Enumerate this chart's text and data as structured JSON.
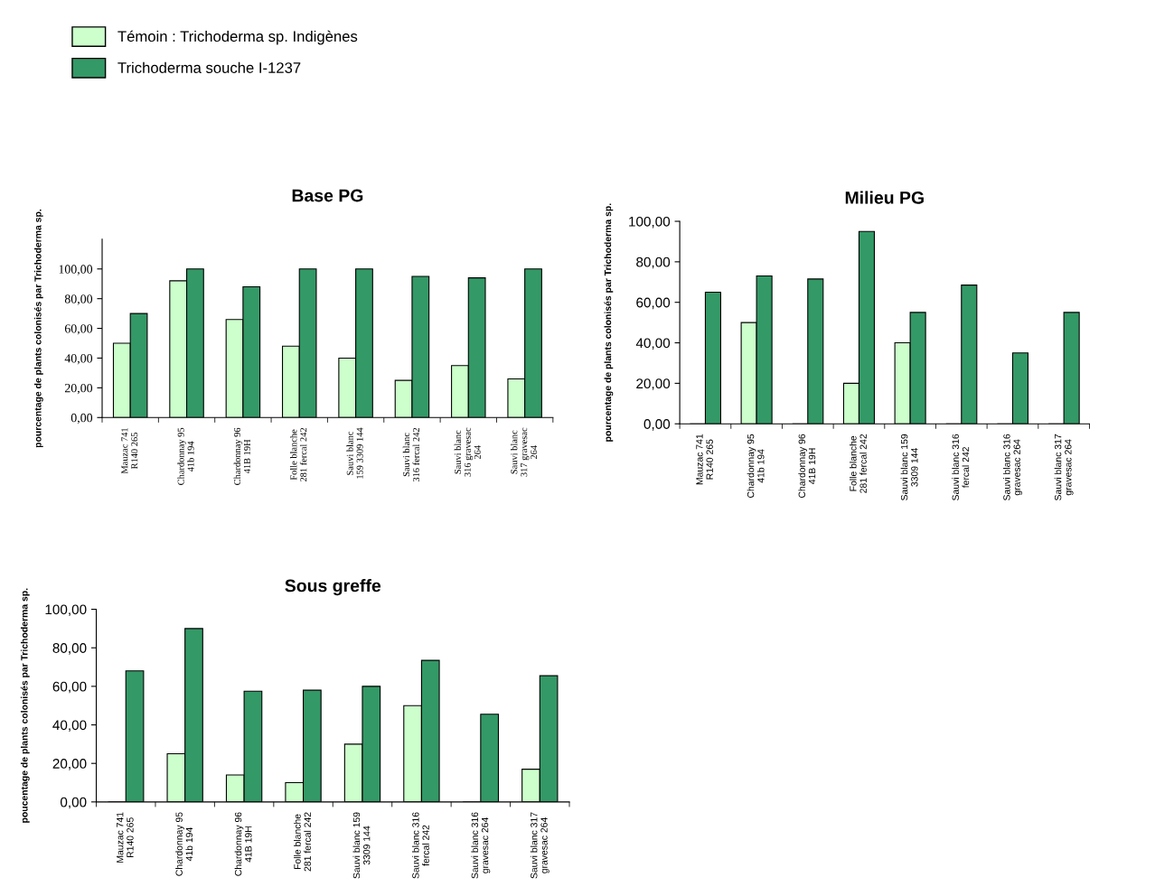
{
  "chart_data": [
    {
      "type": "bar",
      "title": "Base PG",
      "ylabel": "pourcentage de plants colonisés par Trichoderma sp.",
      "categories": [
        "Mauzac 741\nR140 265",
        "Chardonnay 95\n41b 194",
        "Chardonnay 96\n41B 19H",
        "Folle blanche\n281 fercal 242",
        "Sauvi blanc\n159 3309 144",
        "Sauvi blanc\n316 fercal 242",
        "Sauvi blanc\n316 gravesac\n264",
        "Sauvi blanc\n317 gravesac\n264"
      ],
      "series": [
        {
          "name": "Témoin : Trichoderma sp. Indigènes",
          "color": "#ccffcc",
          "values": [
            50,
            92,
            66,
            48,
            40,
            25,
            35,
            26
          ]
        },
        {
          "name": "Trichoderma souche I-1237",
          "color": "#339966",
          "values": [
            70,
            100,
            88,
            100,
            100,
            95,
            94,
            100
          ]
        }
      ],
      "ylim": [
        0,
        120
      ],
      "yticks": [
        {
          "value": 0,
          "label": "0,00"
        },
        {
          "value": 20,
          "label": "20,00"
        },
        {
          "value": 40,
          "label": "40,00"
        },
        {
          "value": 60,
          "label": "60,00"
        },
        {
          "value": 80,
          "label": "80,00"
        },
        {
          "value": 100,
          "label": "100,00"
        }
      ],
      "grid": false,
      "legend": "top left"
    },
    {
      "type": "bar",
      "title": "Milieu PG",
      "ylabel": "pourcentage de plants colonisés par Trichoderma sp.",
      "categories": [
        "Mauzac 741\nR140 265",
        "Chardonnay 95\n41b 194",
        "Chardonnay 96\n41B 19H",
        "Folle blanche\n281 fercal 242",
        "Sauvi blanc 159\n3309 144",
        "Sauvi blanc 316\nfercal 242",
        "Sauvi blanc 316\ngravesac 264",
        "Sauvi blanc 317\ngravesac 264"
      ],
      "series": [
        {
          "color": "#ccffcc",
          "values": [
            0,
            50,
            0,
            20,
            40,
            0,
            0,
            0
          ]
        },
        {
          "color": "#339966",
          "values": [
            65,
            73,
            71.5,
            95,
            55,
            68.5,
            35,
            55
          ]
        }
      ],
      "ylim": [
        0,
        100
      ],
      "yticks": [
        {
          "value": 0,
          "label": "0,00"
        },
        {
          "value": 20,
          "label": "20,00"
        },
        {
          "value": 40,
          "label": "40,00"
        },
        {
          "value": 60,
          "label": "60,00"
        },
        {
          "value": 80,
          "label": "80,00"
        },
        {
          "value": 100,
          "label": "100,00"
        }
      ],
      "grid": false
    },
    {
      "type": "bar",
      "title": "Sous greffe",
      "ylabel": "poucentage de plants colonisés par Trichoderma sp.",
      "categories": [
        "Mauzac 741\nR140 265",
        "Chardonnay 95\n41b 194",
        "Chardonnay 96\n41B 19H",
        "Folle blanche\n281 fercal 242",
        "Sauvi blanc 159\n3309 144",
        "Sauvi blanc 316\nfercal 242",
        "Sauvi blanc 316\ngravesac 264",
        "Sauvi blanc 317\ngravesac 264"
      ],
      "series": [
        {
          "color": "#ccffcc",
          "values": [
            0,
            25,
            14,
            10,
            30,
            50,
            0,
            17
          ]
        },
        {
          "color": "#339966",
          "values": [
            68,
            90,
            57.5,
            58,
            60,
            73.5,
            45.5,
            65.5
          ]
        }
      ],
      "ylim": [
        0,
        100
      ],
      "yticks": [
        {
          "value": 0,
          "label": "0,00"
        },
        {
          "value": 20,
          "label": "20,00"
        },
        {
          "value": 40,
          "label": "40,00"
        },
        {
          "value": 60,
          "label": "60,00"
        },
        {
          "value": 80,
          "label": "80,00"
        },
        {
          "value": 100,
          "label": "100,00"
        }
      ],
      "grid": false
    }
  ]
}
